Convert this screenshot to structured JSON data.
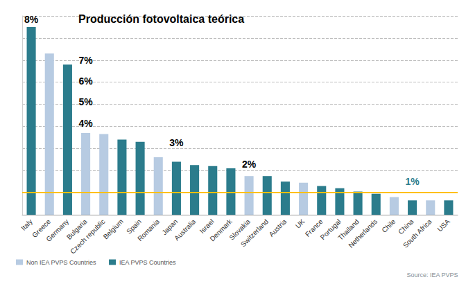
{
  "chart_data": {
    "type": "bar",
    "title": "Producción fotovoltaica teórica",
    "source": "Source: IEA PVPS",
    "categories": [
      "Italy",
      "Greece",
      "Germany",
      "Bulgaria",
      "Czech republic",
      "Belgium",
      "Spain",
      "Romania",
      "Japan",
      "Australia",
      "Israel",
      "Denmark",
      "Slovakia",
      "Switzerland",
      "Austria",
      "UK",
      "France",
      "Portugal",
      "Thailand",
      "Netherlands",
      "Chile",
      "China",
      "South Africa",
      "USA"
    ],
    "series": [
      {
        "name": "Non IEA PVPS Countries",
        "color": "#b7cbe2",
        "values": [
          null,
          7.3,
          null,
          3.7,
          3.65,
          null,
          null,
          2.6,
          null,
          null,
          null,
          null,
          1.75,
          null,
          null,
          1.45,
          null,
          null,
          null,
          null,
          0.8,
          null,
          0.65,
          null
        ]
      },
      {
        "name": "IEA PVPS Countries",
        "color": "#2b7c8c",
        "values": [
          8.5,
          null,
          6.8,
          null,
          null,
          3.4,
          3.3,
          null,
          2.4,
          2.25,
          2.2,
          2.1,
          null,
          1.75,
          1.5,
          null,
          1.3,
          1.2,
          1.05,
          0.95,
          null,
          0.65,
          null,
          0.65
        ]
      }
    ],
    "hline": {
      "value": 1,
      "color": "#ffc000"
    },
    "annotations": [
      {
        "text": "8%",
        "category": "Italy",
        "value": 8.85
      },
      {
        "text": "7%",
        "category": "Bulgaria",
        "value": 7.0
      },
      {
        "text": "6%",
        "category": "Bulgaria",
        "value": 6.05
      },
      {
        "text": "5%",
        "category": "Bulgaria",
        "value": 5.1
      },
      {
        "text": "4%",
        "category": "Bulgaria",
        "value": 4.15
      },
      {
        "text": "3%",
        "category": "Japan",
        "value": 3.25
      },
      {
        "text": "2%",
        "category": "Slovakia",
        "value": 2.3
      },
      {
        "text": "1%",
        "category": "China",
        "value": 1.5,
        "color": "#2b7c8c"
      }
    ],
    "ylim": [
      0,
      9
    ],
    "yticks": [
      0,
      1,
      2,
      3,
      4,
      5,
      6,
      7,
      8,
      9
    ],
    "grid": true,
    "legend": "bottom-left",
    "tick_labels": "x"
  }
}
